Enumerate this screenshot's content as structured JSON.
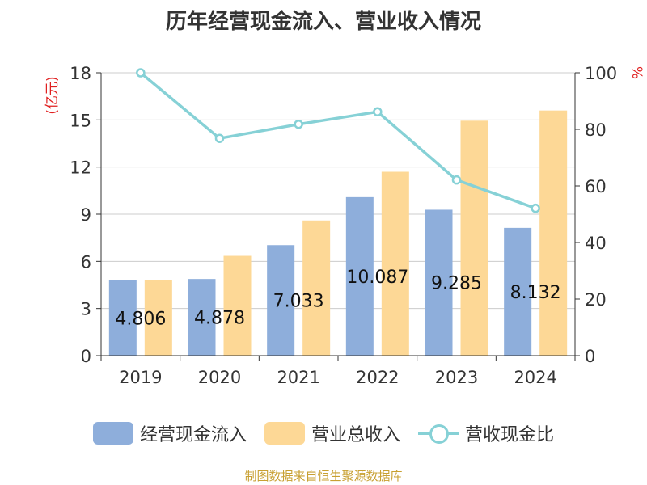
{
  "chart_data": {
    "type": "bar",
    "title": "历年经营现金流入、营业收入情况",
    "categories": [
      "2019",
      "2020",
      "2021",
      "2022",
      "2023",
      "2024"
    ],
    "ylabel": "(亿元)",
    "y2label": "%",
    "ylim": [
      0,
      18
    ],
    "yticks": [
      "0",
      "3",
      "6",
      "9",
      "12",
      "15",
      "18"
    ],
    "y2lim": [
      0,
      100
    ],
    "y2ticks": [
      "0",
      "20",
      "40",
      "60",
      "80",
      "100"
    ],
    "grid": true,
    "legend_position": "bottom",
    "series": [
      {
        "name": "经营现金流入",
        "type": "bar",
        "axis": "left",
        "color": "#8eaedb",
        "values": [
          4.806,
          4.878,
          7.033,
          10.087,
          9.285,
          8.132
        ],
        "labels": [
          "4.806",
          "4.878",
          "7.033",
          "10.087",
          "9.285",
          "8.132"
        ]
      },
      {
        "name": "营业总收入",
        "type": "bar",
        "axis": "left",
        "color": "#fdd896",
        "values": [
          4.8,
          6.35,
          8.6,
          11.7,
          14.95,
          15.6
        ]
      },
      {
        "name": "营收现金比",
        "type": "line",
        "axis": "right",
        "color": "#86d1d6",
        "values": [
          100,
          76.8,
          81.8,
          86.2,
          62.1,
          52.1
        ]
      }
    ],
    "source": "制图数据来自恒生聚源数据库"
  }
}
